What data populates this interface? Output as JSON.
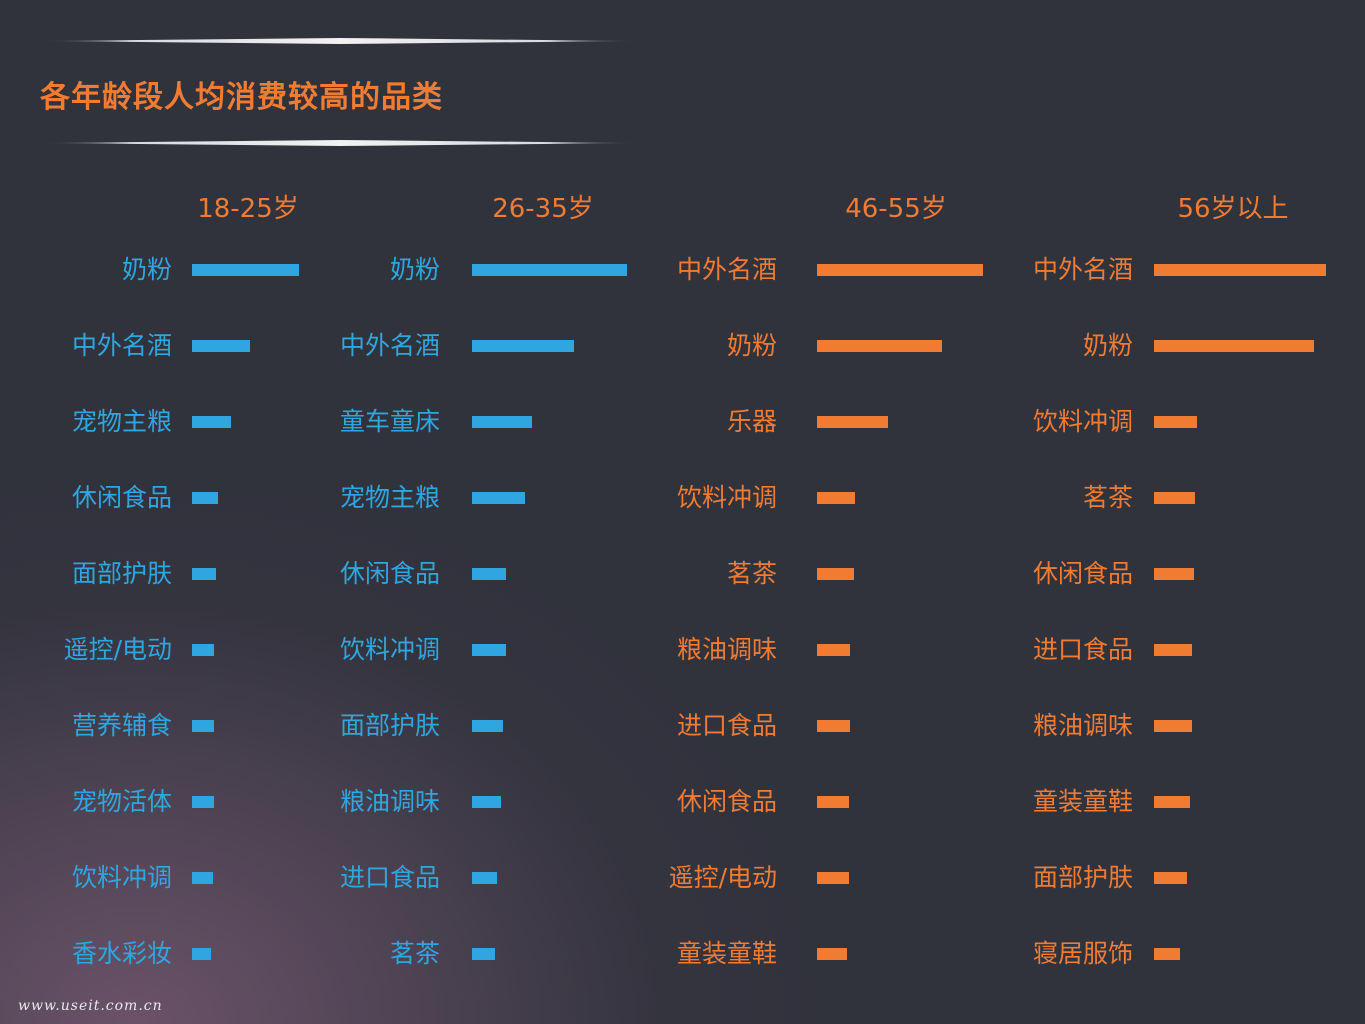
{
  "title": "各年龄段人均消费较高的品类",
  "watermark": "www.useit.com.cn",
  "colors": {
    "blue": "#2fa6e0",
    "orange": "#f07b32"
  },
  "chart_data": [
    {
      "type": "bar",
      "title": "18-25岁",
      "color": "#2fa6e0",
      "categories": [
        "奶粉",
        "中外名酒",
        "宠物主粮",
        "休闲食品",
        "面部护肤",
        "遥控/电动",
        "营养辅食",
        "宠物活体",
        "饮料冲调",
        "香水彩妆"
      ],
      "values": [
        100,
        54,
        36,
        24,
        22,
        21,
        21,
        21,
        20,
        18
      ]
    },
    {
      "type": "bar",
      "title": "26-35岁",
      "color": "#2fa6e0",
      "categories": [
        "奶粉",
        "中外名酒",
        "童车童床",
        "宠物主粮",
        "休闲食品",
        "饮料冲调",
        "面部护肤",
        "粮油调味",
        "进口食品",
        "茗茶"
      ],
      "values": [
        100,
        66,
        39,
        34,
        22,
        22,
        20,
        19,
        16,
        15
      ]
    },
    {
      "type": "bar",
      "title": "46-55岁",
      "color": "#f07b32",
      "categories": [
        "中外名酒",
        "奶粉",
        "乐器",
        "饮料冲调",
        "茗茶",
        "粮油调味",
        "进口食品",
        "休闲食品",
        "遥控/电动",
        "童装童鞋"
      ],
      "values": [
        100,
        75,
        43,
        23,
        22,
        20,
        20,
        19,
        19,
        18
      ]
    },
    {
      "type": "bar",
      "title": "56岁以上",
      "color": "#f07b32",
      "categories": [
        "中外名酒",
        "奶粉",
        "饮料冲调",
        "茗茶",
        "休闲食品",
        "进口食品",
        "粮油调味",
        "童装童鞋",
        "面部护肤",
        "寝居服饰"
      ],
      "values": [
        100,
        93,
        25,
        24,
        23,
        22,
        22,
        21,
        19,
        15
      ]
    }
  ]
}
